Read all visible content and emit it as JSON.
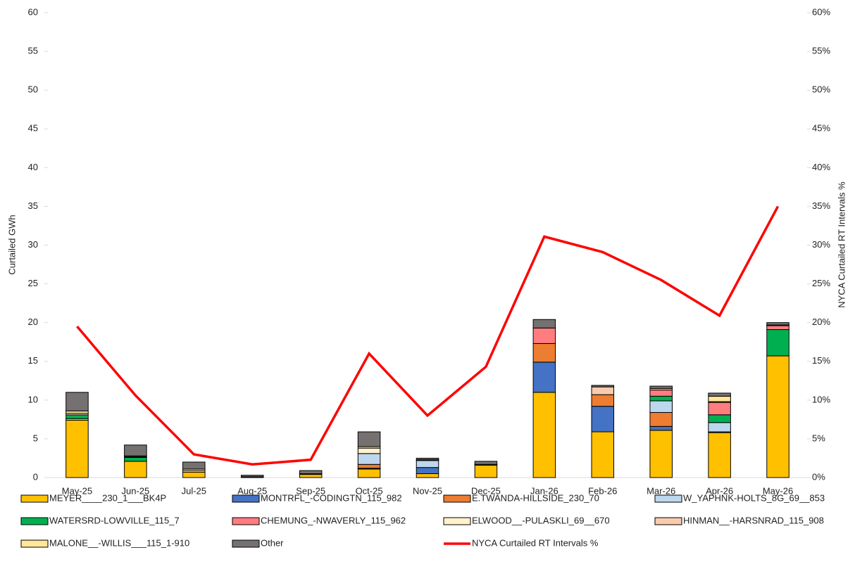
{
  "chart_data": {
    "type": "bar",
    "stacked": true,
    "y_label": "Curtailed GWh",
    "y2_label": "NYCA Curtailed RT Intervals %",
    "categories": [
      "May-25",
      "Jun-25",
      "Jul-25",
      "Aug-25",
      "Sep-25",
      "Oct-25",
      "Nov-25",
      "Dec-25",
      "Jan-26",
      "Feb-26",
      "Mar-26",
      "Apr-26",
      "May-26"
    ],
    "ylim": [
      0,
      60
    ],
    "yticks": [
      0,
      5,
      10,
      15,
      20,
      25,
      30,
      35,
      40,
      45,
      50,
      55,
      60
    ],
    "y2lim": [
      0,
      60
    ],
    "y2ticks": [
      {
        "value": 0,
        "label": "0%"
      },
      {
        "value": 5,
        "label": "5%"
      },
      {
        "value": 10,
        "label": "10%"
      },
      {
        "value": 15,
        "label": "15%"
      },
      {
        "value": 20,
        "label": "20%"
      },
      {
        "value": 25,
        "label": "25%"
      },
      {
        "value": 30,
        "label": "30%"
      },
      {
        "value": 35,
        "label": "35%"
      },
      {
        "value": 40,
        "label": "40%"
      },
      {
        "value": 45,
        "label": "45%"
      },
      {
        "value": 50,
        "label": "50%"
      },
      {
        "value": 55,
        "label": "55%"
      },
      {
        "value": 60,
        "label": "60%"
      }
    ],
    "series": [
      {
        "name": "MEYER____230_1___BK4P",
        "color": "#ffc000",
        "values": [
          7.4,
          2.1,
          0.7,
          0.1,
          0.4,
          1.1,
          0.5,
          1.6,
          11.0,
          5.9,
          6.1,
          5.8,
          15.7
        ]
      },
      {
        "name": "MONTRFL_-CODINGTN_115_982",
        "color": "#4472c4",
        "values": [
          0,
          0,
          0,
          0,
          0,
          0.1,
          0.8,
          0,
          3.9,
          3.3,
          0.5,
          0.1,
          0
        ]
      },
      {
        "name": "E.TWANDA-HILLSIDE_230_70",
        "color": "#ed7d31",
        "values": [
          0,
          0,
          0,
          0,
          0,
          0.5,
          0,
          0,
          2.4,
          1.5,
          1.8,
          0,
          0
        ]
      },
      {
        "name": "W_YAPHNK-HOLTS_8G_69__853",
        "color": "#bdd7ee",
        "values": [
          0.2,
          0,
          0,
          0,
          0,
          1.4,
          0.9,
          0,
          0,
          0,
          1.5,
          1.2,
          0
        ]
      },
      {
        "name": "WATERSRD-LOWVILLE_115_7",
        "color": "#00b050",
        "values": [
          0.5,
          0.5,
          0,
          0,
          0,
          0,
          0,
          0,
          0,
          0,
          0.6,
          1.0,
          3.4
        ]
      },
      {
        "name": "CHEMUNG_-NWAVERLY_115_962",
        "color": "#ff7c80",
        "values": [
          0,
          0,
          0,
          0,
          0,
          0,
          0,
          0,
          2.0,
          0,
          0.8,
          1.6,
          0.5
        ]
      },
      {
        "name": "ELWOOD__-PULASKLI_69__670",
        "color": "#fff2cc",
        "values": [
          0.2,
          0.1,
          0.2,
          0,
          0.1,
          0.7,
          0.1,
          0.1,
          0,
          0,
          0,
          0.1,
          0.1
        ]
      },
      {
        "name": "HINMAN__-HARSNRAD_115_908",
        "color": "#f8cbad",
        "values": [
          0,
          0,
          0,
          0,
          0,
          0,
          0,
          0,
          0,
          1.0,
          0.2,
          0,
          0
        ]
      },
      {
        "name": "MALONE__-WILLIS___115_1-910",
        "color": "#ffe699",
        "values": [
          0.3,
          0.1,
          0.2,
          0,
          0,
          0.2,
          0,
          0,
          0,
          0,
          0,
          0.7,
          0
        ]
      },
      {
        "name": "Other",
        "color": "#767171",
        "values": [
          2.4,
          1.4,
          0.9,
          0.2,
          0.4,
          1.9,
          0.2,
          0.4,
          1.1,
          0.2,
          0.3,
          0.4,
          0.3
        ]
      },
      {
        "name": "NYCA Curtailed RT Intervals %",
        "color": "#ff0000",
        "type": "line",
        "axis": "y2",
        "values": [
          19.5,
          10.6,
          3.0,
          1.7,
          2.3,
          16.0,
          8.0,
          14.3,
          31.1,
          29.1,
          25.5,
          20.9,
          35.0
        ]
      }
    ]
  }
}
